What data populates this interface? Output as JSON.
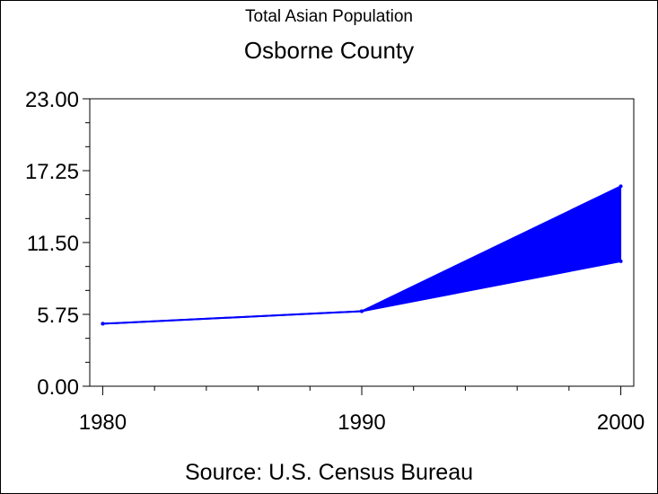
{
  "chart_data": {
    "type": "area",
    "title": "Total Asian Population",
    "subtitle": "Osborne County",
    "footnote": "Source: U.S. Census Bureau",
    "xlabel": "",
    "ylabel": "",
    "x_ticks": [
      "1980",
      "1990",
      "2000"
    ],
    "y_ticks": [
      "0.00",
      "5.75",
      "11.50",
      "17.25",
      "23.00"
    ],
    "xlim": [
      1979.5,
      2000.5
    ],
    "ylim": [
      0,
      23
    ],
    "grid": false,
    "color": "#0000ff",
    "series": [
      {
        "x": [
          1980,
          1990,
          2000
        ],
        "values": [
          5,
          6,
          16
        ]
      },
      {
        "x": [
          1980,
          1990,
          2000
        ],
        "values": [
          5,
          6,
          10
        ]
      }
    ]
  }
}
